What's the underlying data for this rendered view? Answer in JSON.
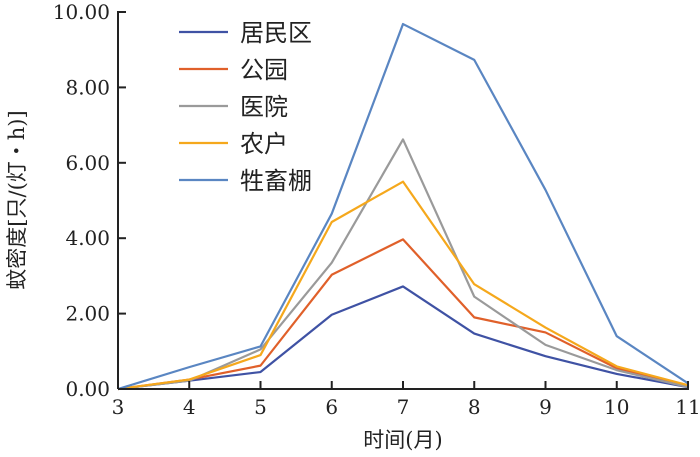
{
  "chart_data": {
    "type": "line",
    "title": "",
    "xlabel": "时间(月)",
    "ylabel": "蚊密度[只/(灯・h)]",
    "x": [
      3,
      4,
      5,
      6,
      7,
      8,
      9,
      10,
      11
    ],
    "xlim": [
      3,
      11
    ],
    "ylim": [
      0,
      10
    ],
    "yticks": [
      "0.00",
      "2.00",
      "4.00",
      "6.00",
      "8.00",
      "10.00"
    ],
    "xticks": [
      "3",
      "4",
      "5",
      "6",
      "7",
      "8",
      "9",
      "10",
      "11"
    ],
    "grid": false,
    "legend_position": "top-left",
    "series": [
      {
        "name": "居民区",
        "color": "#3f52a4",
        "values": [
          0,
          0.22,
          0.45,
          1.97,
          2.72,
          1.47,
          0.87,
          0.4,
          0.05
        ]
      },
      {
        "name": "公园",
        "color": "#e0602a",
        "values": [
          0,
          0.25,
          0.62,
          3.03,
          3.97,
          1.9,
          1.5,
          0.55,
          0.08
        ]
      },
      {
        "name": "医院",
        "color": "#9a9a9a",
        "values": [
          0,
          0.22,
          1.05,
          3.35,
          6.62,
          2.45,
          1.17,
          0.5,
          0.05
        ]
      },
      {
        "name": "农户",
        "color": "#f5a81c",
        "values": [
          0,
          0.25,
          0.9,
          4.43,
          5.5,
          2.78,
          1.63,
          0.6,
          0.1
        ]
      },
      {
        "name": "牲畜棚",
        "color": "#5a86c2",
        "values": [
          0,
          0.58,
          1.13,
          4.65,
          9.68,
          8.73,
          5.28,
          1.4,
          0.15
        ]
      }
    ]
  }
}
